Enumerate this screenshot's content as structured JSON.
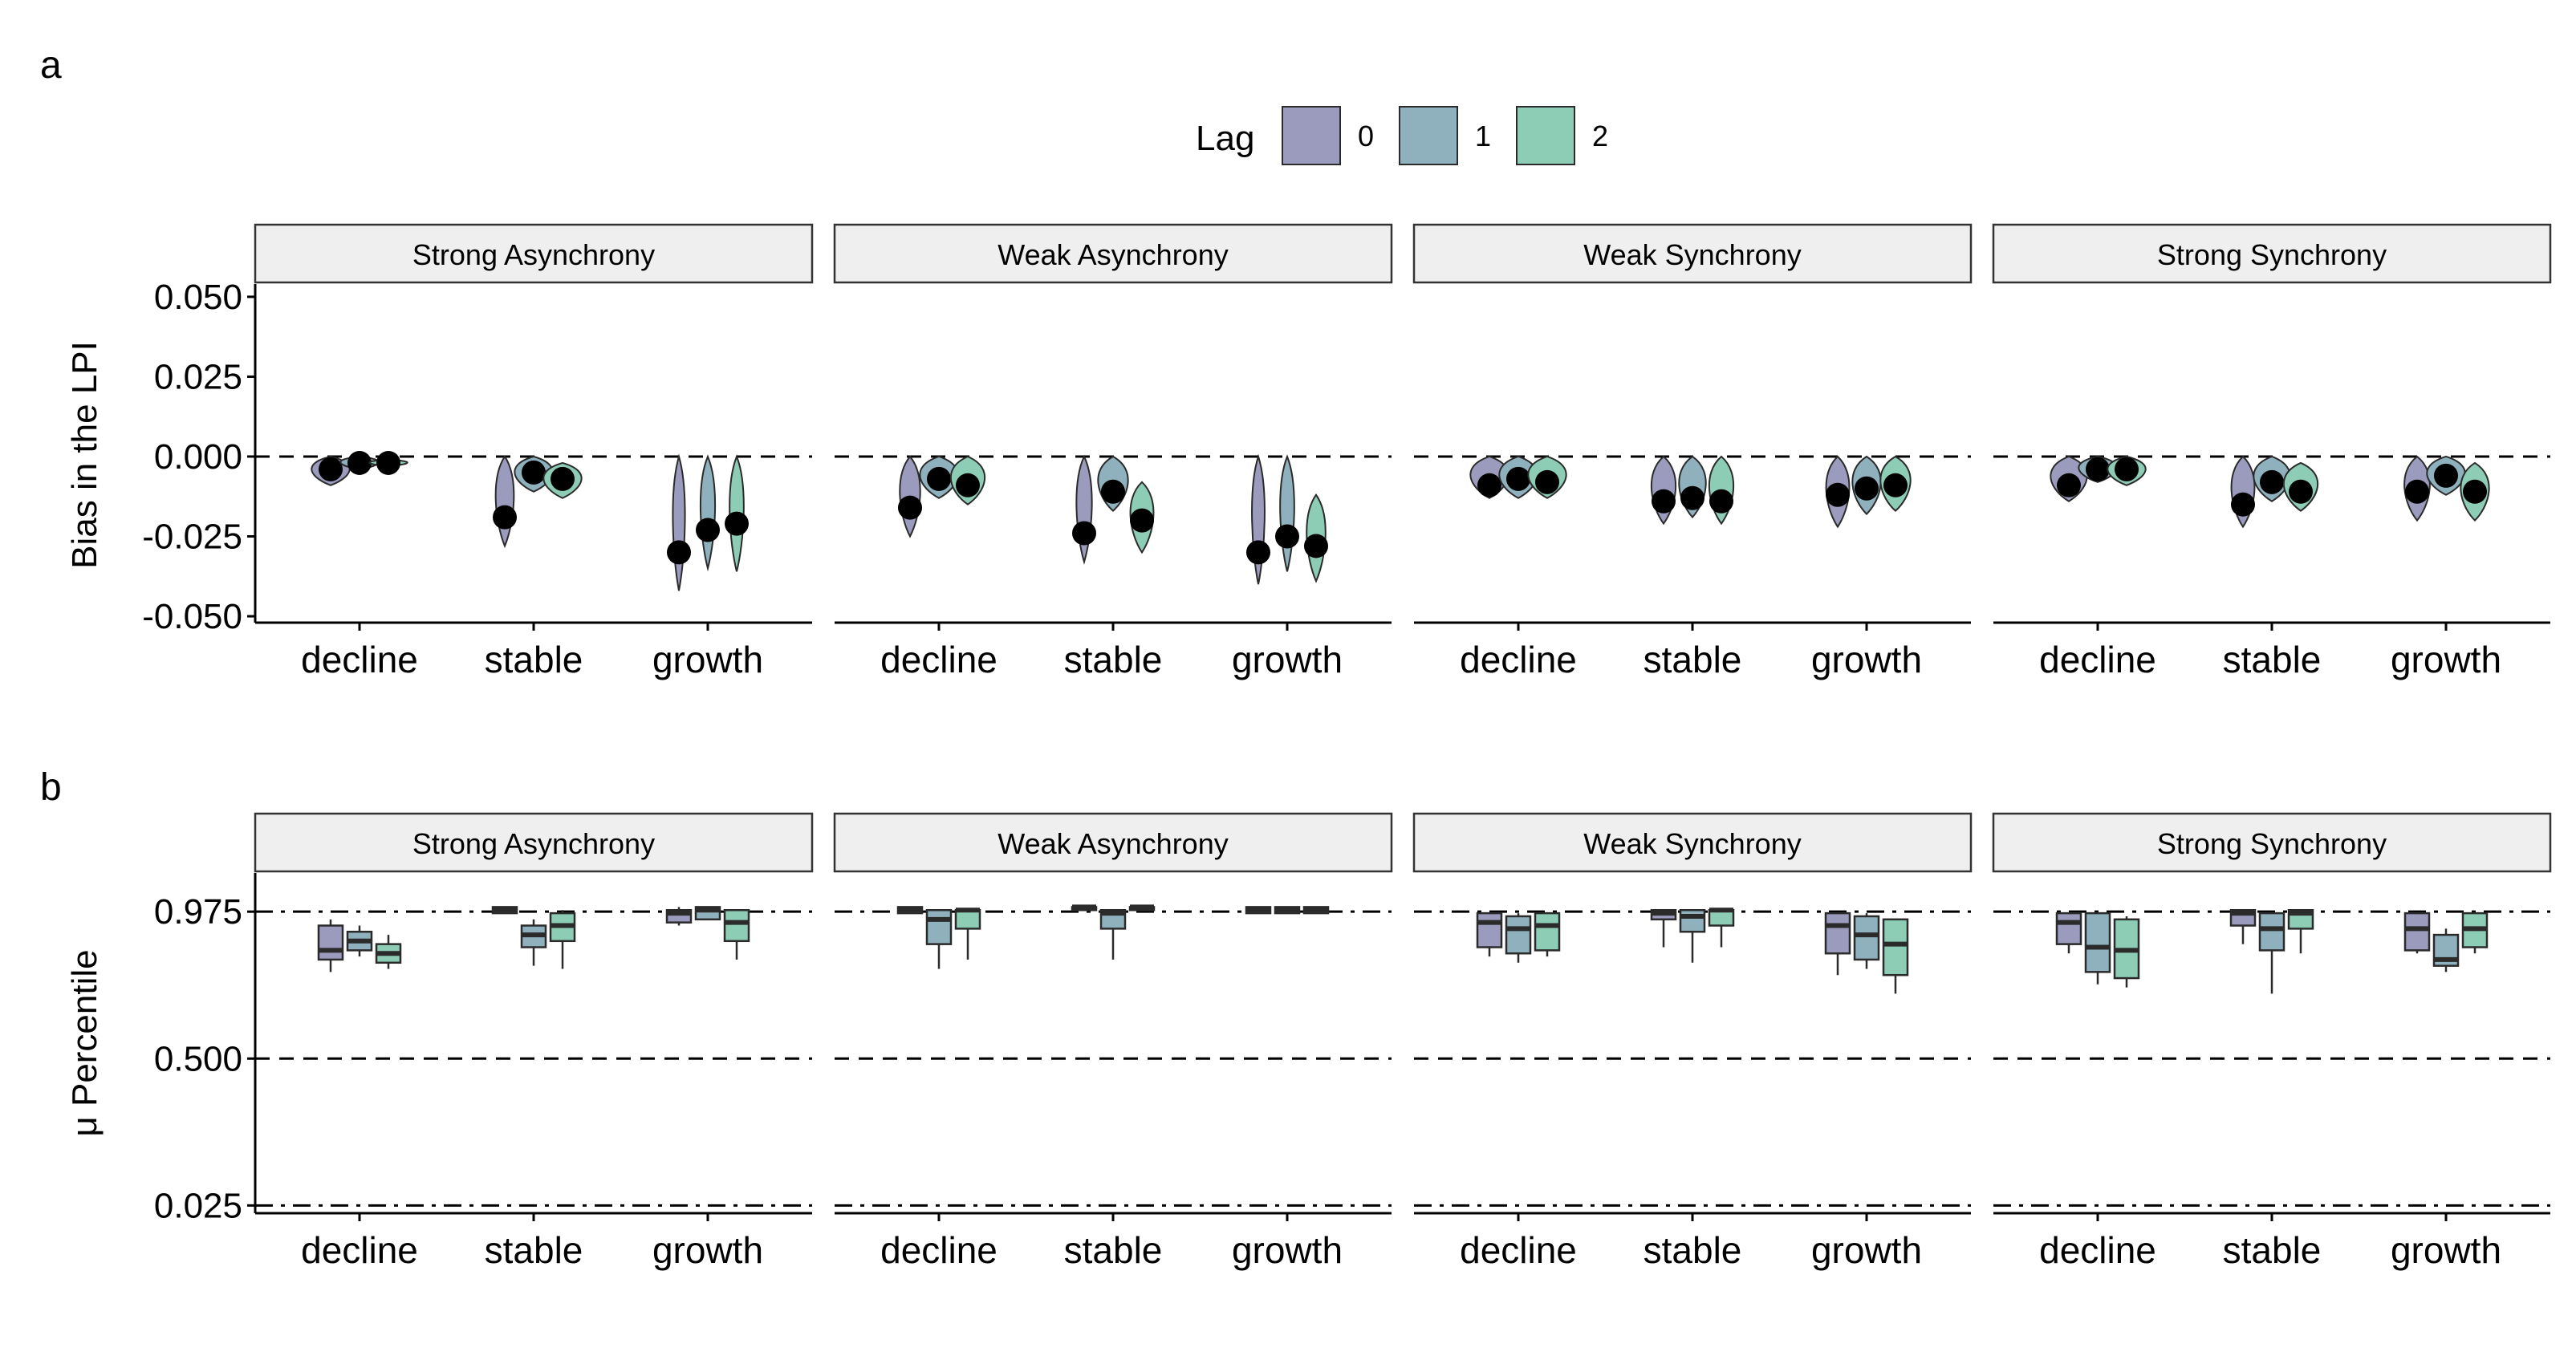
{
  "legend": {
    "title": "Lag",
    "items": [
      {
        "label": "0",
        "color": "#9b9bbd"
      },
      {
        "label": "1",
        "color": "#8fb1bd"
      },
      {
        "label": "2",
        "color": "#8ecdb5"
      }
    ]
  },
  "chart_data": [
    {
      "type": "violin",
      "panel_tag": "a",
      "ylabel": "Bias in the LPI",
      "ylim": [
        -0.052,
        0.054
      ],
      "yticks": [
        0.05,
        0.025,
        0.0,
        -0.025,
        -0.05
      ],
      "ytick_labels": [
        "0.050",
        "0.025",
        "0.000",
        "-0.025",
        "-0.050"
      ],
      "reference_lines": [
        {
          "y": 0.0,
          "style": "dashed"
        }
      ],
      "facets": [
        "Strong Asynchrony",
        "Weak Asynchrony",
        "Weak Synchrony",
        "Strong Synchrony"
      ],
      "categories": [
        "decline",
        "stable",
        "growth"
      ],
      "series_names": [
        "0",
        "1",
        "2"
      ],
      "points": [
        [
          [
            -0.004,
            -0.002,
            -0.002
          ],
          [
            -0.019,
            -0.005,
            -0.007
          ],
          [
            -0.03,
            -0.023,
            -0.021
          ]
        ],
        [
          [
            -0.016,
            -0.007,
            -0.009
          ],
          [
            -0.024,
            -0.011,
            -0.02
          ],
          [
            -0.03,
            -0.025,
            -0.028
          ]
        ],
        [
          [
            -0.009,
            -0.007,
            -0.008
          ],
          [
            -0.014,
            -0.013,
            -0.014
          ],
          [
            -0.012,
            -0.01,
            -0.009
          ]
        ],
        [
          [
            -0.009,
            -0.004,
            -0.004
          ],
          [
            -0.015,
            -0.008,
            -0.011
          ],
          [
            -0.011,
            -0.006,
            -0.011
          ]
        ]
      ],
      "ranges": [
        [
          [
            [
              -0.009,
              0.0
            ],
            [
              -0.004,
              0.0
            ],
            [
              -0.003,
              -0.001
            ]
          ],
          [
            [
              -0.028,
              0.0
            ],
            [
              -0.011,
              0.0
            ],
            [
              -0.013,
              -0.002
            ]
          ],
          [
            [
              -0.042,
              0.0
            ],
            [
              -0.035,
              0.0
            ],
            [
              -0.036,
              0.0
            ]
          ]
        ],
        [
          [
            [
              -0.025,
              0.0
            ],
            [
              -0.013,
              0.0
            ],
            [
              -0.015,
              0.0
            ]
          ],
          [
            [
              -0.033,
              0.0
            ],
            [
              -0.017,
              0.0
            ],
            [
              -0.03,
              -0.008
            ]
          ],
          [
            [
              -0.04,
              0.0
            ],
            [
              -0.036,
              0.0
            ],
            [
              -0.039,
              -0.012
            ]
          ]
        ],
        [
          [
            [
              -0.013,
              0.0
            ],
            [
              -0.013,
              0.0
            ],
            [
              -0.013,
              0.0
            ]
          ],
          [
            [
              -0.021,
              0.0
            ],
            [
              -0.019,
              0.0
            ],
            [
              -0.021,
              0.0
            ]
          ],
          [
            [
              -0.022,
              0.0
            ],
            [
              -0.018,
              0.0
            ],
            [
              -0.017,
              0.0
            ]
          ]
        ],
        [
          [
            [
              -0.014,
              0.0
            ],
            [
              -0.008,
              0.0
            ],
            [
              -0.009,
              0.0
            ]
          ],
          [
            [
              -0.022,
              0.0
            ],
            [
              -0.014,
              0.0
            ],
            [
              -0.017,
              -0.002
            ]
          ],
          [
            [
              -0.02,
              0.0
            ],
            [
              -0.012,
              0.0
            ],
            [
              -0.02,
              -0.002
            ]
          ]
        ]
      ]
    },
    {
      "type": "box",
      "panel_tag": "b",
      "ylabel": "μ Percentile",
      "ylim": [
        0.0,
        1.1
      ],
      "yticks": [
        0.975,
        0.5,
        0.025
      ],
      "ytick_labels": [
        "0.975",
        "0.500",
        "0.025"
      ],
      "reference_lines": [
        {
          "y": 0.975,
          "style": "dashdot"
        },
        {
          "y": 0.5,
          "style": "dashed"
        },
        {
          "y": 0.025,
          "style": "dashdot"
        }
      ],
      "facets": [
        "Strong Asynchrony",
        "Weak Asynchrony",
        "Weak Synchrony",
        "Strong Synchrony"
      ],
      "categories": [
        "decline",
        "stable",
        "growth"
      ],
      "series_names": [
        "0",
        "1",
        "2"
      ],
      "boxes": [
        [
          [
            [
              0.78,
              0.82,
              0.85,
              0.93,
              0.95
            ],
            [
              0.83,
              0.85,
              0.88,
              0.91,
              0.93
            ],
            [
              0.79,
              0.81,
              0.84,
              0.87,
              0.9
            ]
          ],
          [
            [
              0.97,
              0.97,
              0.98,
              0.99,
              0.99
            ],
            [
              0.8,
              0.86,
              0.9,
              0.93,
              0.95
            ],
            [
              0.79,
              0.88,
              0.93,
              0.97,
              0.98
            ]
          ],
          [
            [
              0.93,
              0.94,
              0.97,
              0.98,
              0.99
            ],
            [
              0.95,
              0.95,
              0.98,
              0.99,
              0.99
            ],
            [
              0.82,
              0.88,
              0.94,
              0.98,
              0.98
            ]
          ]
        ],
        [
          [
            [
              0.97,
              0.97,
              0.98,
              0.99,
              0.99
            ],
            [
              0.79,
              0.87,
              0.95,
              0.98,
              0.98
            ],
            [
              0.82,
              0.92,
              0.98,
              0.98,
              0.98
            ]
          ],
          [
            [
              0.98,
              0.98,
              0.99,
              0.99,
              0.99
            ],
            [
              0.82,
              0.92,
              0.97,
              0.98,
              0.98
            ],
            [
              0.98,
              0.98,
              0.99,
              0.99,
              0.99
            ]
          ],
          [
            [
              0.97,
              0.97,
              0.98,
              0.99,
              0.99
            ],
            [
              0.97,
              0.97,
              0.98,
              0.99,
              0.99
            ],
            [
              0.97,
              0.97,
              0.98,
              0.99,
              0.99
            ]
          ]
        ],
        [
          [
            [
              0.83,
              0.86,
              0.94,
              0.97,
              0.97
            ],
            [
              0.81,
              0.84,
              0.92,
              0.96,
              0.97
            ],
            [
              0.83,
              0.85,
              0.93,
              0.97,
              0.97
            ]
          ],
          [
            [
              0.86,
              0.95,
              0.97,
              0.98,
              0.98
            ],
            [
              0.81,
              0.91,
              0.96,
              0.98,
              0.98
            ],
            [
              0.86,
              0.93,
              0.98,
              0.98,
              0.98
            ]
          ],
          [
            [
              0.77,
              0.84,
              0.93,
              0.97,
              0.97
            ],
            [
              0.79,
              0.82,
              0.9,
              0.96,
              0.97
            ],
            [
              0.71,
              0.77,
              0.87,
              0.95,
              0.95
            ]
          ]
        ],
        [
          [
            [
              0.84,
              0.87,
              0.94,
              0.97,
              0.97
            ],
            [
              0.74,
              0.78,
              0.86,
              0.97,
              0.97
            ],
            [
              0.73,
              0.76,
              0.85,
              0.95,
              0.96
            ]
          ],
          [
            [
              0.87,
              0.93,
              0.97,
              0.98,
              0.98
            ],
            [
              0.71,
              0.85,
              0.92,
              0.97,
              0.97
            ],
            [
              0.84,
              0.92,
              0.97,
              0.98,
              0.98
            ]
          ],
          [
            [
              0.84,
              0.85,
              0.92,
              0.97,
              0.97
            ],
            [
              0.78,
              0.8,
              0.82,
              0.9,
              0.92
            ],
            [
              0.84,
              0.86,
              0.92,
              0.97,
              0.97
            ]
          ]
        ]
      ]
    }
  ]
}
